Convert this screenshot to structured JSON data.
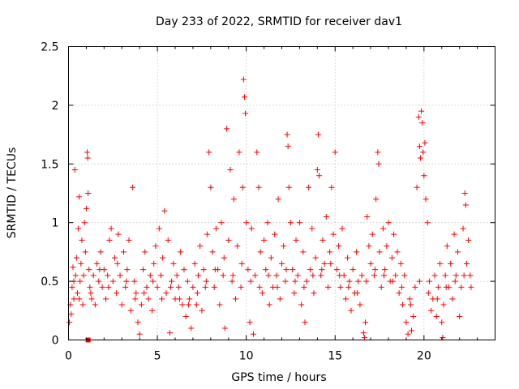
{
  "chart_data": {
    "type": "scatter",
    "title": "Day 233 of 2022, SRMTID for receiver dav1",
    "xlabel": "GPS time / hours",
    "ylabel": "SRMTID / TECUs",
    "xlim": [
      0,
      24
    ],
    "ylim": [
      0,
      2.5
    ],
    "grid": true,
    "marker": "+",
    "x_ticks": [
      0,
      5,
      10,
      15,
      20
    ],
    "x_tick_labels": [
      "0",
      "5",
      "10",
      "15",
      "20"
    ],
    "y_ticks": [
      0,
      0.5,
      1,
      1.5,
      2,
      2.5
    ],
    "y_tick_labels": [
      "0",
      "0.5",
      "1",
      "1.5",
      "2",
      "2.5"
    ],
    "series": [
      {
        "name": "SRMTID",
        "color": "#ff0000",
        "points": [
          [
            0.05,
            0.15
          ],
          [
            0.1,
            0.3
          ],
          [
            0.15,
            0.22
          ],
          [
            0.2,
            0.45
          ],
          [
            0.25,
            0.62
          ],
          [
            0.3,
            0.35
          ],
          [
            0.35,
            1.45
          ],
          [
            0.4,
            0.55
          ],
          [
            0.45,
            0.7
          ],
          [
            0.5,
            0.4
          ],
          [
            0.55,
            0.95
          ],
          [
            0.6,
            1.22
          ],
          [
            0.65,
            0.5
          ],
          [
            0.7,
            0.65
          ],
          [
            0.75,
            0.85
          ],
          [
            0.8,
            0.3
          ],
          [
            0.85,
            0.55
          ],
          [
            0.9,
            1.0
          ],
          [
            0.95,
            0.75
          ],
          [
            1.0,
            1.12
          ],
          [
            1.05,
            1.6
          ],
          [
            1.08,
            1.55
          ],
          [
            1.1,
            1.25
          ],
          [
            1.15,
            0.6
          ],
          [
            1.2,
            0.45
          ],
          [
            1.3,
            0.35
          ],
          [
            1.4,
            0.55
          ],
          [
            1.5,
            0.3
          ],
          [
            1.6,
            0.65
          ],
          [
            1.7,
            0.5
          ],
          [
            1.8,
            0.75
          ],
          [
            1.9,
            0.45
          ],
          [
            2.0,
            0.6
          ],
          [
            2.1,
            0.35
          ],
          [
            2.2,
            0.55
          ],
          [
            2.3,
            0.85
          ],
          [
            2.4,
            0.95
          ],
          [
            2.5,
            0.5
          ],
          [
            2.6,
            0.7
          ],
          [
            2.7,
            0.4
          ],
          [
            2.8,
            0.9
          ],
          [
            2.9,
            0.55
          ],
          [
            3.0,
            0.3
          ],
          [
            3.1,
            0.75
          ],
          [
            3.2,
            0.45
          ],
          [
            3.3,
            0.6
          ],
          [
            3.4,
            0.85
          ],
          [
            3.5,
            0.25
          ],
          [
            3.6,
            1.3
          ],
          [
            3.7,
            0.5
          ],
          [
            3.8,
            0.4
          ],
          [
            3.9,
            0.15
          ],
          [
            4.0,
            0.05
          ],
          [
            4.1,
            0.3
          ],
          [
            4.2,
            0.6
          ],
          [
            4.3,
            0.75
          ],
          [
            4.4,
            0.45
          ],
          [
            4.5,
            0.35
          ],
          [
            4.6,
            0.55
          ],
          [
            4.7,
            0.25
          ],
          [
            4.8,
            0.65
          ],
          [
            4.9,
            0.8
          ],
          [
            5.0,
            0.45
          ],
          [
            5.1,
            0.95
          ],
          [
            5.2,
            0.55
          ],
          [
            5.3,
            0.7
          ],
          [
            5.4,
            1.1
          ],
          [
            5.5,
            0.4
          ],
          [
            5.6,
            0.85
          ],
          [
            5.7,
            0.06
          ],
          [
            5.8,
            0.5
          ],
          [
            5.9,
            0.65
          ],
          [
            6.0,
            0.35
          ],
          [
            6.1,
            0.55
          ],
          [
            6.2,
            0.45
          ],
          [
            6.3,
            0.75
          ],
          [
            6.4,
            0.3
          ],
          [
            6.5,
            0.6
          ],
          [
            6.6,
            0.2
          ],
          [
            6.7,
            0.5
          ],
          [
            6.8,
            0.35
          ],
          [
            6.9,
            0.1
          ],
          [
            7.0,
            0.45
          ],
          [
            7.1,
            0.65
          ],
          [
            7.2,
            0.3
          ],
          [
            7.3,
            0.55
          ],
          [
            7.4,
            0.8
          ],
          [
            7.5,
            0.25
          ],
          [
            7.6,
            0.6
          ],
          [
            7.7,
            0.45
          ],
          [
            7.8,
            0.9
          ],
          [
            7.9,
            1.6
          ],
          [
            8.0,
            1.3
          ],
          [
            8.1,
            0.75
          ],
          [
            8.2,
            0.45
          ],
          [
            8.3,
            0.95
          ],
          [
            8.4,
            0.6
          ],
          [
            8.5,
            0.3
          ],
          [
            8.6,
            1.0
          ],
          [
            8.7,
            0.55
          ],
          [
            8.8,
            0.1
          ],
          [
            8.9,
            1.8
          ],
          [
            9.0,
            0.85
          ],
          [
            9.1,
            1.45
          ],
          [
            9.2,
            0.5
          ],
          [
            9.3,
            1.2
          ],
          [
            9.4,
            0.35
          ],
          [
            9.5,
            0.8
          ],
          [
            9.6,
            1.6
          ],
          [
            9.7,
            0.45
          ],
          [
            9.8,
            1.3
          ],
          [
            9.85,
            2.22
          ],
          [
            9.9,
            2.07
          ],
          [
            9.95,
            1.93
          ],
          [
            10.0,
            1.0
          ],
          [
            10.1,
            0.6
          ],
          [
            10.2,
            0.15
          ],
          [
            10.3,
            0.95
          ],
          [
            10.4,
            0.05
          ],
          [
            10.5,
            0.55
          ],
          [
            10.6,
            1.6
          ],
          [
            10.7,
            1.3
          ],
          [
            10.8,
            0.75
          ],
          [
            10.9,
            0.4
          ],
          [
            11.0,
            0.85
          ],
          [
            11.1,
            0.6
          ],
          [
            11.2,
            1.0
          ],
          [
            11.3,
            0.3
          ],
          [
            11.4,
            0.7
          ],
          [
            11.5,
            0.45
          ],
          [
            11.6,
            0.9
          ],
          [
            11.7,
            0.55
          ],
          [
            11.8,
            1.2
          ],
          [
            11.9,
            0.35
          ],
          [
            12.0,
            0.65
          ],
          [
            12.1,
            0.8
          ],
          [
            12.2,
            0.5
          ],
          [
            12.3,
            1.75
          ],
          [
            12.35,
            1.65
          ],
          [
            12.4,
            1.3
          ],
          [
            12.5,
            1.0
          ],
          [
            12.6,
            0.6
          ],
          [
            12.7,
            0.4
          ],
          [
            12.8,
            0.85
          ],
          [
            12.9,
            0.55
          ],
          [
            13.0,
            1.0
          ],
          [
            13.1,
            0.3
          ],
          [
            13.2,
            0.75
          ],
          [
            13.3,
            0.15
          ],
          [
            13.4,
            0.5
          ],
          [
            13.5,
            1.3
          ],
          [
            13.6,
            0.6
          ],
          [
            13.7,
            0.95
          ],
          [
            13.8,
            0.4
          ],
          [
            13.9,
            0.7
          ],
          [
            14.0,
            1.45
          ],
          [
            14.05,
            1.75
          ],
          [
            14.1,
            1.4
          ],
          [
            14.2,
            0.55
          ],
          [
            14.3,
            0.85
          ],
          [
            14.4,
            0.65
          ],
          [
            14.5,
            1.05
          ],
          [
            14.6,
            0.45
          ],
          [
            14.7,
            0.75
          ],
          [
            14.8,
            1.3
          ],
          [
            14.9,
            0.9
          ],
          [
            15.0,
            1.6
          ],
          [
            15.1,
            0.6
          ],
          [
            15.2,
            0.8
          ],
          [
            15.3,
            0.45
          ],
          [
            15.4,
            0.95
          ],
          [
            15.5,
            0.55
          ],
          [
            15.6,
            0.35
          ],
          [
            15.7,
            0.7
          ],
          [
            15.8,
            0.5
          ],
          [
            15.9,
            0.25
          ],
          [
            16.0,
            0.6
          ],
          [
            16.1,
            0.4
          ],
          [
            16.2,
            0.75
          ],
          [
            16.3,
            0.5
          ],
          [
            16.4,
            0.3
          ],
          [
            16.5,
            0.55
          ],
          [
            16.6,
            0.06
          ],
          [
            16.65,
            0.02
          ],
          [
            16.7,
            0.15
          ],
          [
            16.8,
            1.05
          ],
          [
            16.9,
            0.8
          ],
          [
            17.0,
            0.65
          ],
          [
            17.1,
            0.9
          ],
          [
            17.2,
            0.55
          ],
          [
            17.3,
            1.2
          ],
          [
            17.4,
            1.6
          ],
          [
            17.45,
            1.5
          ],
          [
            17.5,
            0.75
          ],
          [
            17.6,
            0.45
          ],
          [
            17.7,
            0.95
          ],
          [
            17.8,
            0.6
          ],
          [
            17.9,
            0.8
          ],
          [
            18.0,
            1.0
          ],
          [
            18.1,
            0.5
          ],
          [
            18.2,
            0.7
          ],
          [
            18.3,
            0.9
          ],
          [
            18.4,
            0.55
          ],
          [
            18.5,
            0.75
          ],
          [
            18.6,
            0.4
          ],
          [
            18.7,
            0.65
          ],
          [
            18.8,
            0.3
          ],
          [
            18.9,
            0.55
          ],
          [
            19.0,
            0.15
          ],
          [
            19.1,
            0.05
          ],
          [
            19.2,
            0.35
          ],
          [
            19.3,
            0.08
          ],
          [
            19.4,
            0.2
          ],
          [
            19.5,
            0.45
          ],
          [
            19.6,
            1.3
          ],
          [
            19.7,
            1.9
          ],
          [
            19.75,
            1.65
          ],
          [
            19.8,
            1.55
          ],
          [
            19.85,
            1.95
          ],
          [
            19.9,
            1.85
          ],
          [
            19.95,
            1.6
          ],
          [
            20.0,
            1.4
          ],
          [
            20.05,
            1.68
          ],
          [
            20.1,
            1.2
          ],
          [
            20.2,
            1.0
          ],
          [
            20.3,
            0.5
          ],
          [
            20.4,
            0.25
          ],
          [
            20.5,
            0.35
          ],
          [
            20.6,
            0.55
          ],
          [
            20.7,
            0.2
          ],
          [
            20.8,
            0.45
          ],
          [
            20.9,
            0.65
          ],
          [
            21.0,
            0.15
          ],
          [
            21.05,
            0.02
          ],
          [
            21.1,
            0.3
          ],
          [
            21.2,
            0.55
          ],
          [
            21.3,
            0.8
          ],
          [
            21.4,
            0.45
          ],
          [
            21.5,
            0.65
          ],
          [
            21.6,
            0.35
          ],
          [
            21.7,
            0.9
          ],
          [
            21.8,
            0.55
          ],
          [
            21.9,
            0.75
          ],
          [
            22.0,
            0.2
          ],
          [
            22.1,
            0.45
          ],
          [
            22.2,
            0.95
          ],
          [
            22.3,
            1.25
          ],
          [
            22.35,
            1.15
          ],
          [
            22.4,
            0.65
          ],
          [
            22.5,
            0.85
          ],
          [
            22.6,
            0.55
          ],
          [
            22.65,
            0.45
          ],
          [
            0.3,
            0.5
          ],
          [
            0.6,
            0.35
          ],
          [
            1.25,
            0.4
          ],
          [
            1.75,
            0.6
          ],
          [
            2.25,
            0.45
          ],
          [
            2.75,
            0.65
          ],
          [
            3.25,
            0.5
          ],
          [
            3.75,
            0.35
          ],
          [
            4.25,
            0.4
          ],
          [
            4.75,
            0.5
          ],
          [
            5.25,
            0.35
          ],
          [
            5.75,
            0.45
          ],
          [
            6.25,
            0.35
          ],
          [
            6.75,
            0.3
          ],
          [
            7.25,
            0.4
          ],
          [
            7.75,
            0.5
          ],
          [
            8.25,
            0.6
          ],
          [
            8.75,
            0.7
          ],
          [
            9.25,
            0.55
          ],
          [
            9.75,
            0.65
          ],
          [
            10.25,
            0.5
          ],
          [
            10.75,
            0.45
          ],
          [
            11.25,
            0.55
          ],
          [
            11.75,
            0.45
          ],
          [
            12.25,
            0.6
          ],
          [
            12.75,
            0.5
          ],
          [
            13.25,
            0.45
          ],
          [
            13.75,
            0.55
          ],
          [
            14.25,
            0.6
          ],
          [
            14.75,
            0.65
          ],
          [
            15.25,
            0.55
          ],
          [
            15.75,
            0.45
          ],
          [
            16.25,
            0.4
          ],
          [
            16.75,
            0.5
          ],
          [
            17.25,
            0.6
          ],
          [
            17.75,
            0.55
          ],
          [
            18.25,
            0.5
          ],
          [
            18.75,
            0.45
          ],
          [
            19.25,
            0.3
          ],
          [
            19.75,
            0.5
          ],
          [
            20.25,
            0.4
          ],
          [
            20.75,
            0.35
          ],
          [
            21.25,
            0.45
          ],
          [
            21.75,
            0.5
          ],
          [
            22.25,
            0.55
          ]
        ]
      }
    ],
    "extra_markers": [
      {
        "x": 1.1,
        "y": 0.0,
        "shape": "square"
      }
    ]
  }
}
